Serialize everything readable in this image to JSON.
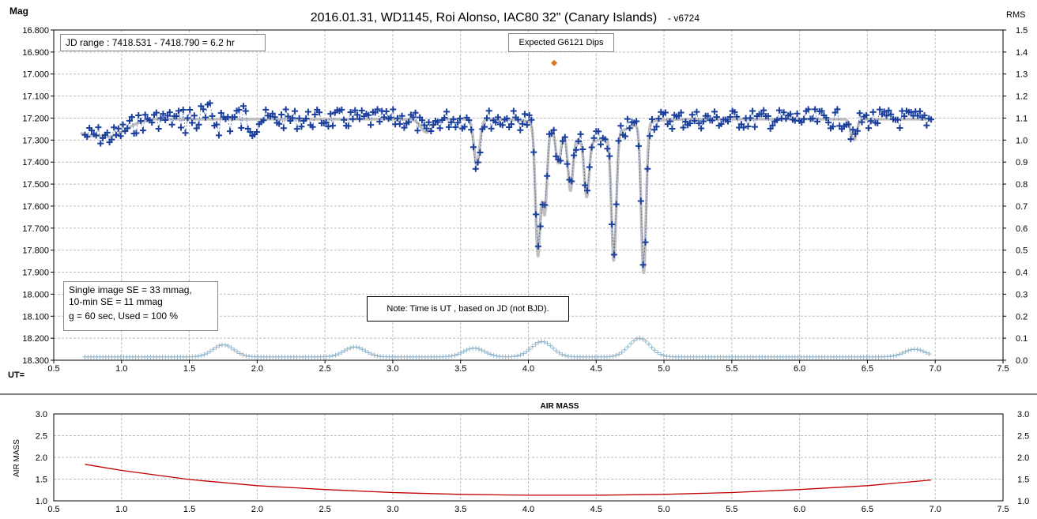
{
  "title": "2016.01.31,  WD1145, Roi Alonso, IAC80 32\" (Canary Islands)",
  "version": "- v6724",
  "ylabel_left": "Mag",
  "ylabel_right": "RMS",
  "xlabel": "UT=",
  "boxes": {
    "jd_range": "JD range  : 7418.531 - 7418.790  = 6.2 hr",
    "expected": "Expected G6121 Dips",
    "stats_line1": "Single image SE = 33 mmag,",
    "stats_line2": "10-min SE = 11 mmag",
    "stats_line3": "g = 60 sec, Used = 100 %",
    "note": "Note: Time is UT , based on JD (not BJD)."
  },
  "colors": {
    "points": "#1a3f9c",
    "model": "#bfbfbf",
    "rms": "#8fb3c8",
    "expected_marker": "#d9741a",
    "airmass": "#c00000",
    "grid": "#bdbdbd"
  },
  "chart_data": [
    {
      "type": "scatter",
      "title": "2016.01.31,  WD1145, Roi Alonso, IAC80 32\" (Canary Islands)",
      "xlabel": "UT=",
      "ylabel": "Mag",
      "y2label": "RMS",
      "xlim": [
        0.5,
        7.5
      ],
      "ylim": [
        16.8,
        18.3
      ],
      "y_inverted": true,
      "y2lim": [
        0.0,
        1.5
      ],
      "grid": true,
      "x_ticks": [
        "0.5",
        "1.0",
        "1.5",
        "2.0",
        "2.5",
        "3.0",
        "3.5",
        "4.0",
        "4.5",
        "5.0",
        "5.5",
        "6.0",
        "6.5",
        "7.0",
        "7.5"
      ],
      "y_ticks": [
        "16.800",
        "16.900",
        "17.000",
        "17.100",
        "17.200",
        "17.300",
        "17.400",
        "17.500",
        "17.600",
        "17.700",
        "17.800",
        "17.900",
        "18.000",
        "18.100",
        "18.200",
        "18.300"
      ],
      "y2_ticks": [
        "1.5",
        "1.4",
        "1.3",
        "1.2",
        "1.1",
        "1.0",
        "0.9",
        "0.8",
        "0.7",
        "0.6",
        "0.5",
        "0.4",
        "0.3",
        "0.2",
        "0.1",
        "0.0"
      ],
      "baseline_mag": 17.205,
      "dips": [
        {
          "x": 3.62,
          "mag": 17.41
        },
        {
          "x": 4.07,
          "mag": 17.8
        },
        {
          "x": 4.12,
          "mag": 17.6
        },
        {
          "x": 4.22,
          "mag": 17.35
        },
        {
          "x": 4.31,
          "mag": 17.45
        },
        {
          "x": 4.43,
          "mag": 17.46
        },
        {
          "x": 4.63,
          "mag": 17.78
        },
        {
          "x": 4.85,
          "mag": 17.89
        },
        {
          "x": 6.4,
          "mag": 17.3
        }
      ],
      "expected_dip": {
        "x": 4.19,
        "mag": 16.95,
        "label": "Expected G6121 Dips"
      },
      "series": [
        {
          "name": "Magnitude",
          "x_start": 0.73,
          "x_end": 6.97,
          "n": 380
        },
        {
          "name": "Model",
          "x_start": 0.7,
          "x_end": 6.97
        },
        {
          "name": "RMS",
          "x_start": 0.73,
          "x_end": 6.97,
          "bumps": [
            {
              "x": 1.75,
              "rms": 0.07
            },
            {
              "x": 2.72,
              "rms": 0.06
            },
            {
              "x": 3.6,
              "rms": 0.055
            },
            {
              "x": 4.1,
              "rms": 0.085
            },
            {
              "x": 4.82,
              "rms": 0.1
            },
            {
              "x": 6.85,
              "rms": 0.05
            }
          ]
        }
      ]
    },
    {
      "type": "line",
      "title": "AIR MASS",
      "ylabel": "AIR MASS",
      "xlim": [
        0.5,
        7.5
      ],
      "ylim": [
        1.0,
        3.0
      ],
      "grid": true,
      "x_ticks": [
        "0.5",
        "1.0",
        "1.5",
        "2.0",
        "2.5",
        "3.0",
        "3.5",
        "4.0",
        "4.5",
        "5.0",
        "5.5",
        "6.0",
        "6.5",
        "7.0",
        "7.5"
      ],
      "y_ticks": [
        "3.0",
        "2.5",
        "2.0",
        "1.5",
        "1.0"
      ],
      "series": [
        {
          "name": "Air mass",
          "x": [
            0.73,
            1.0,
            1.5,
            2.0,
            2.5,
            3.0,
            3.5,
            4.0,
            4.5,
            5.0,
            5.5,
            6.0,
            6.5,
            6.97
          ],
          "values": [
            1.84,
            1.7,
            1.49,
            1.35,
            1.26,
            1.19,
            1.15,
            1.13,
            1.13,
            1.15,
            1.19,
            1.26,
            1.35,
            1.48
          ]
        }
      ]
    }
  ]
}
